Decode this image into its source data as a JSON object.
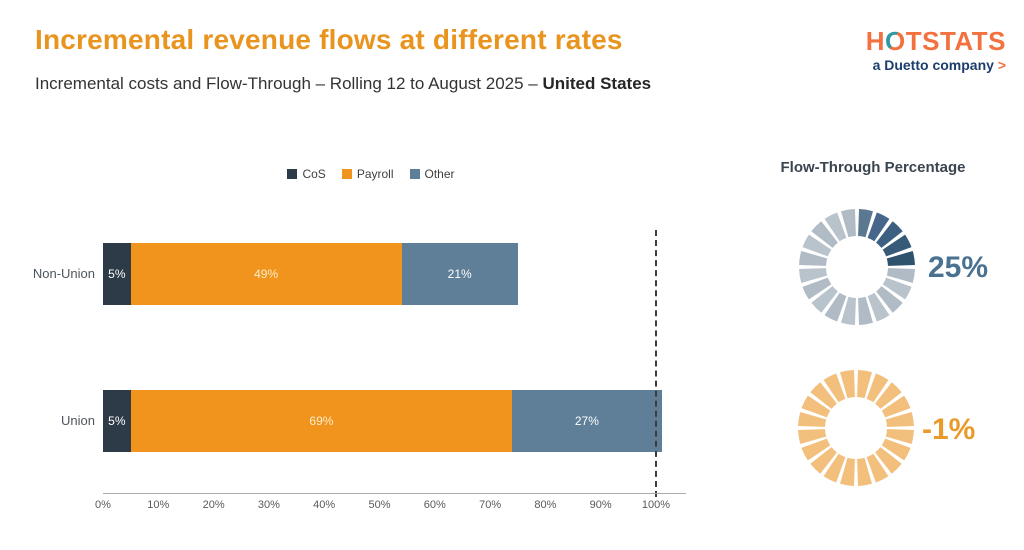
{
  "header": {
    "title": "Incremental revenue flows at different rates",
    "subtitle_prefix": "Incremental costs and Flow-Through – Rolling 12 to August 2025 – ",
    "subtitle_bold": "United States"
  },
  "logo": {
    "h": "H",
    "o": "O",
    "rest": "TSTATS",
    "tagline": "a Duetto company",
    "arrow": ">",
    "brand_orange": "#f2713f",
    "brand_teal": "#2f9aa3",
    "brand_navy": "#1d3d6d"
  },
  "flow_through": {
    "title": "Flow-Through Percentage"
  },
  "chart_data": [
    {
      "type": "bar",
      "stacked": true,
      "orientation": "horizontal",
      "title": "",
      "xlabel": "",
      "ylabel": "",
      "xlim": [
        0,
        100
      ],
      "grid": false,
      "legend_position": "top-center",
      "legend": [
        {
          "label": "CoS",
          "color": "#2d3b49"
        },
        {
          "label": "Payroll",
          "color": "#f0941d"
        },
        {
          "label": "Other",
          "color": "#5f7e97"
        }
      ],
      "categories": [
        "Non-Union",
        "Union"
      ],
      "series": [
        {
          "name": "CoS",
          "color": "#2d3b49",
          "label_color": "#ffffff",
          "values": [
            5,
            5
          ]
        },
        {
          "name": "Payroll",
          "color": "#f0941d",
          "label_color": "#fdeecb",
          "values": [
            49,
            69
          ]
        },
        {
          "name": "Other",
          "color": "#5f7e97",
          "label_color": "#ffffff",
          "values": [
            21,
            27
          ]
        }
      ],
      "value_labels": [
        [
          "5%",
          "49%",
          "21%"
        ],
        [
          "5%",
          "69%",
          "27%"
        ]
      ],
      "x_ticks": [
        "0%",
        "10%",
        "20%",
        "30%",
        "40%",
        "50%",
        "60%",
        "70%",
        "80%",
        "90%",
        "100%"
      ],
      "reference_line_at": "100%"
    },
    {
      "type": "pie",
      "subtype": "segmented-donut",
      "value": 25,
      "display": "25%",
      "segments": 20,
      "filled_colors": [
        "#5a7890",
        "#46678b",
        "#3c6081",
        "#365a77",
        "#2f536d"
      ],
      "empty_colors": [
        "#b9c3cc",
        "#b0bbc5"
      ],
      "value_color": "#4b7191"
    },
    {
      "type": "pie",
      "subtype": "segmented-donut",
      "value": -1,
      "display": "-1%",
      "segments": 20,
      "filled_colors": [],
      "empty_colors": [
        "#f2c07c"
      ],
      "value_color": "#e89b2b"
    }
  ]
}
